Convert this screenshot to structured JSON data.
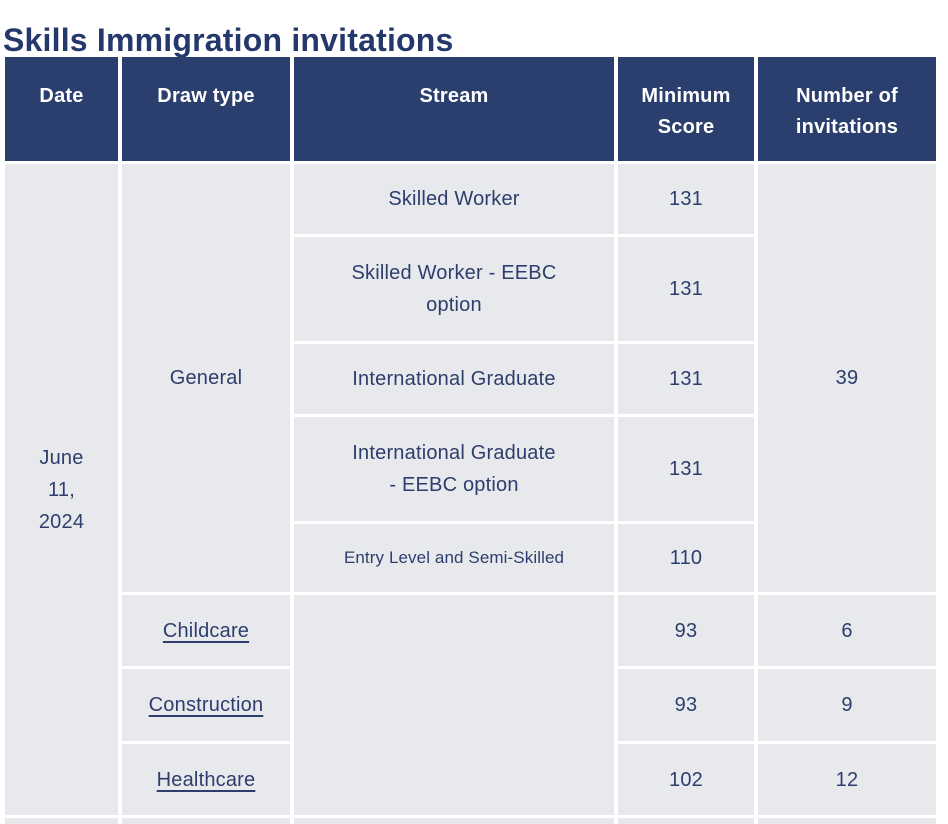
{
  "page": {
    "title": "Skills Immigration invitations"
  },
  "table": {
    "columns": [
      "Date",
      "Draw type",
      "Stream",
      "Minimum Score",
      "Number of invitations"
    ],
    "date": "June 11, 2024",
    "general": {
      "draw_type": "General",
      "invitations": "39",
      "streams": [
        {
          "name": "Skilled Worker",
          "min_score": "131"
        },
        {
          "name": "Skilled Worker - EEBC option",
          "min_score": "131"
        },
        {
          "name": "International Graduate",
          "min_score": "131"
        },
        {
          "name": "International Graduate - EEBC option",
          "min_score": "131"
        },
        {
          "name": "Entry Level and Semi-Skilled",
          "min_score": "110"
        }
      ]
    },
    "targeted_draws": [
      {
        "draw_type": "Childcare",
        "min_score": "93",
        "invitations": "6"
      },
      {
        "draw_type": "Construction",
        "min_score": "93",
        "invitations": "9"
      },
      {
        "draw_type": "Healthcare",
        "min_score": "102",
        "invitations": "12"
      }
    ]
  },
  "colors": {
    "header_bg": "#2b3f6f",
    "cell_bg": "#e8e9ed",
    "text": "#2d3e6d",
    "title": "#24386b",
    "link": "#2d3e6d"
  }
}
